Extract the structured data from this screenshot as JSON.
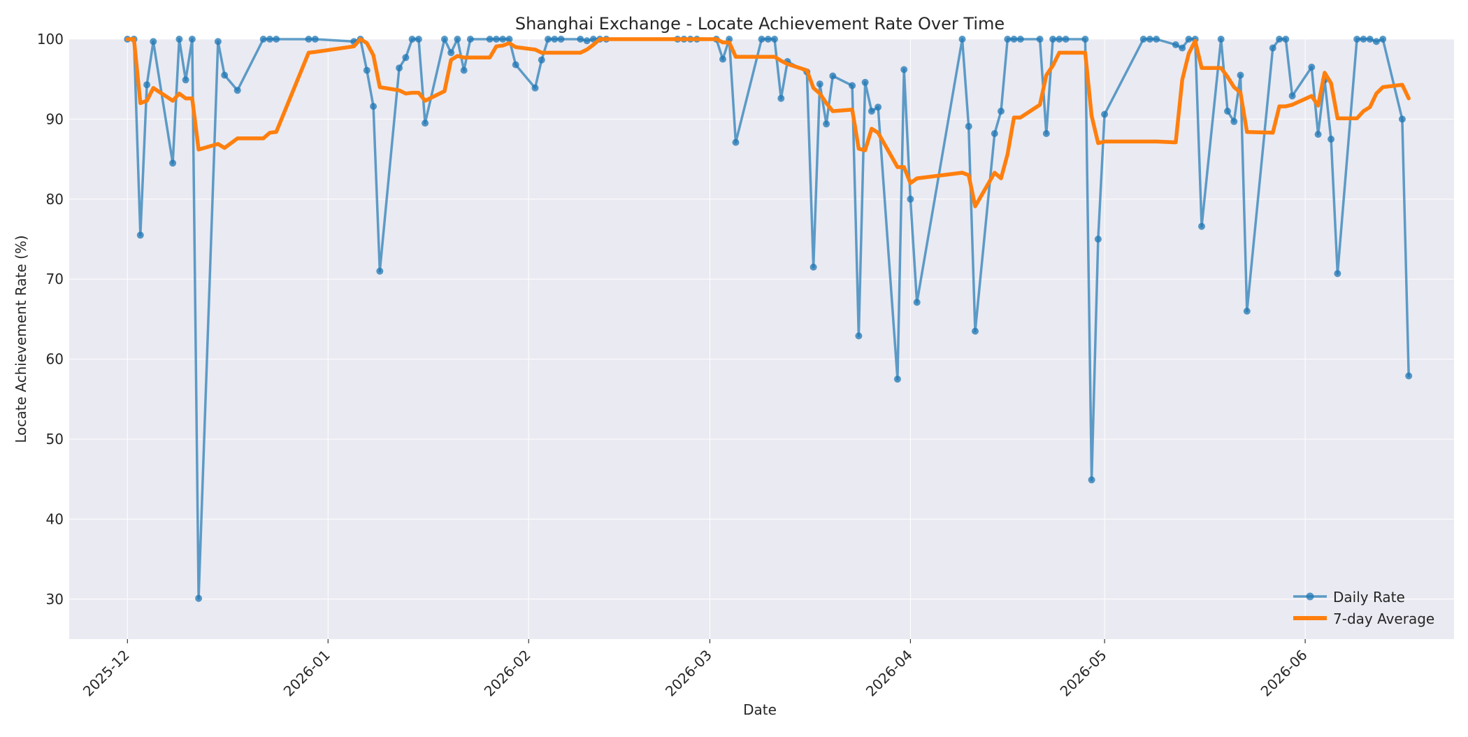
{
  "chart_data": {
    "type": "line",
    "title": "Shanghai Exchange - Locate Achievement Rate Over Time",
    "xlabel": "Date",
    "ylabel": "Locate Achievement Rate (%)",
    "xlim": [
      "2025-11-22",
      "2026-06-24"
    ],
    "ylim": [
      25,
      100
    ],
    "grid": true,
    "legend_position": "lower-right",
    "x_ticks": [
      "2025-12",
      "2026-01",
      "2026-02",
      "2026-03",
      "2026-04",
      "2026-05",
      "2026-06"
    ],
    "y_ticks": [
      30,
      40,
      50,
      60,
      70,
      80,
      90,
      100
    ],
    "series": [
      {
        "name": "Daily Rate",
        "color": "#1f77b4",
        "marker": "circle",
        "points": [
          [
            "2025-12-01",
            100.0
          ],
          [
            "2025-12-02",
            100.0
          ],
          [
            "2025-12-03",
            75.5
          ],
          [
            "2025-12-04",
            94.3
          ],
          [
            "2025-12-05",
            99.7
          ],
          [
            "2025-12-08",
            84.5
          ],
          [
            "2025-12-09",
            100.0
          ],
          [
            "2025-12-10",
            94.9
          ],
          [
            "2025-12-11",
            100.0
          ],
          [
            "2025-12-12",
            30.1
          ],
          [
            "2025-12-15",
            99.7
          ],
          [
            "2025-12-16",
            95.5
          ],
          [
            "2025-12-18",
            93.6
          ],
          [
            "2025-12-22",
            100.0
          ],
          [
            "2025-12-23",
            100.0
          ],
          [
            "2025-12-24",
            100.0
          ],
          [
            "2025-12-29",
            100.0
          ],
          [
            "2025-12-30",
            100.0
          ],
          [
            "2026-01-05",
            99.7
          ],
          [
            "2026-01-06",
            100.0
          ],
          [
            "2026-01-07",
            96.1
          ],
          [
            "2026-01-08",
            91.6
          ],
          [
            "2026-01-09",
            71.0
          ],
          [
            "2026-01-12",
            96.4
          ],
          [
            "2026-01-13",
            97.7
          ],
          [
            "2026-01-14",
            100.0
          ],
          [
            "2026-01-15",
            100.0
          ],
          [
            "2026-01-16",
            89.5
          ],
          [
            "2026-01-19",
            100.0
          ],
          [
            "2026-01-20",
            98.3
          ],
          [
            "2026-01-21",
            100.0
          ],
          [
            "2026-01-22",
            96.1
          ],
          [
            "2026-01-23",
            100.0
          ],
          [
            "2026-01-26",
            100.0
          ],
          [
            "2026-01-27",
            100.0
          ],
          [
            "2026-01-28",
            100.0
          ],
          [
            "2026-01-29",
            100.0
          ],
          [
            "2026-01-30",
            96.8
          ],
          [
            "2026-02-02",
            93.9
          ],
          [
            "2026-02-03",
            97.4
          ],
          [
            "2026-02-04",
            100.0
          ],
          [
            "2026-02-05",
            100.0
          ],
          [
            "2026-02-06",
            100.0
          ],
          [
            "2026-02-09",
            100.0
          ],
          [
            "2026-02-10",
            99.8
          ],
          [
            "2026-02-11",
            100.0
          ],
          [
            "2026-02-12",
            100.0
          ],
          [
            "2026-02-13",
            100.0
          ],
          [
            "2026-02-24",
            100.0
          ],
          [
            "2026-02-25",
            100.0
          ],
          [
            "2026-02-26",
            100.0
          ],
          [
            "2026-02-27",
            100.0
          ],
          [
            "2026-03-02",
            100.0
          ],
          [
            "2026-03-03",
            97.5
          ],
          [
            "2026-03-04",
            100.0
          ],
          [
            "2026-03-05",
            87.1
          ],
          [
            "2026-03-09",
            100.0
          ],
          [
            "2026-03-10",
            100.0
          ],
          [
            "2026-03-11",
            100.0
          ],
          [
            "2026-03-12",
            92.6
          ],
          [
            "2026-03-13",
            97.2
          ],
          [
            "2026-03-16",
            95.9
          ],
          [
            "2026-03-17",
            71.5
          ],
          [
            "2026-03-18",
            94.4
          ],
          [
            "2026-03-19",
            89.4
          ],
          [
            "2026-03-20",
            95.4
          ],
          [
            "2026-03-23",
            94.2
          ],
          [
            "2026-03-24",
            62.9
          ],
          [
            "2026-03-25",
            94.6
          ],
          [
            "2026-03-26",
            91.0
          ],
          [
            "2026-03-27",
            91.5
          ],
          [
            "2026-03-30",
            57.5
          ],
          [
            "2026-03-31",
            96.2
          ],
          [
            "2026-04-01",
            80.0
          ],
          [
            "2026-04-02",
            67.1
          ],
          [
            "2026-04-09",
            100.0
          ],
          [
            "2026-04-10",
            89.1
          ],
          [
            "2026-04-11",
            63.5
          ],
          [
            "2026-04-14",
            88.2
          ],
          [
            "2026-04-15",
            91.0
          ],
          [
            "2026-04-16",
            100.0
          ],
          [
            "2026-04-17",
            100.0
          ],
          [
            "2026-04-18",
            100.0
          ],
          [
            "2026-04-21",
            100.0
          ],
          [
            "2026-04-22",
            88.2
          ],
          [
            "2026-04-23",
            100.0
          ],
          [
            "2026-04-24",
            100.0
          ],
          [
            "2026-04-25",
            100.0
          ],
          [
            "2026-04-28",
            100.0
          ],
          [
            "2026-04-29",
            44.9
          ],
          [
            "2026-04-30",
            75.0
          ],
          [
            "2026-05-01",
            90.6
          ],
          [
            "2026-05-07",
            100.0
          ],
          [
            "2026-05-08",
            100.0
          ],
          [
            "2026-05-09",
            100.0
          ],
          [
            "2026-05-12",
            99.3
          ],
          [
            "2026-05-13",
            98.9
          ],
          [
            "2026-05-14",
            100.0
          ],
          [
            "2026-05-15",
            100.0
          ],
          [
            "2026-05-16",
            76.6
          ],
          [
            "2026-05-19",
            100.0
          ],
          [
            "2026-05-20",
            91.0
          ],
          [
            "2026-05-21",
            89.7
          ],
          [
            "2026-05-22",
            95.5
          ],
          [
            "2026-05-23",
            66.0
          ],
          [
            "2026-05-27",
            98.9
          ],
          [
            "2026-05-28",
            100.0
          ],
          [
            "2026-05-29",
            100.0
          ],
          [
            "2026-05-30",
            92.9
          ],
          [
            "2026-06-02",
            96.5
          ],
          [
            "2026-06-03",
            88.1
          ],
          [
            "2026-06-04",
            94.9
          ],
          [
            "2026-06-05",
            87.5
          ],
          [
            "2026-06-06",
            70.7
          ],
          [
            "2026-06-09",
            100.0
          ],
          [
            "2026-06-10",
            100.0
          ],
          [
            "2026-06-11",
            100.0
          ],
          [
            "2026-06-12",
            99.7
          ],
          [
            "2026-06-13",
            100.0
          ],
          [
            "2026-06-16",
            90.0
          ],
          [
            "2026-06-17",
            57.9
          ]
        ]
      },
      {
        "name": "7-day Average",
        "color": "#ff7f0e",
        "marker": "none",
        "points": [
          [
            "2025-12-01",
            100.0
          ],
          [
            "2025-12-02",
            100.0
          ],
          [
            "2025-12-03",
            92.0
          ],
          [
            "2025-12-04",
            92.3
          ],
          [
            "2025-12-05",
            93.9
          ],
          [
            "2025-12-08",
            92.3
          ],
          [
            "2025-12-09",
            93.2
          ],
          [
            "2025-12-10",
            92.6
          ],
          [
            "2025-12-11",
            92.6
          ],
          [
            "2025-12-12",
            86.2
          ],
          [
            "2025-12-15",
            86.9
          ],
          [
            "2025-12-16",
            86.4
          ],
          [
            "2025-12-18",
            87.6
          ],
          [
            "2025-12-22",
            87.6
          ],
          [
            "2025-12-23",
            88.3
          ],
          [
            "2025-12-24",
            88.4
          ],
          [
            "2025-12-29",
            98.3
          ],
          [
            "2025-12-30",
            98.4
          ],
          [
            "2026-01-05",
            99.1
          ],
          [
            "2026-01-06",
            100.0
          ],
          [
            "2026-01-07",
            99.5
          ],
          [
            "2026-01-08",
            98.0
          ],
          [
            "2026-01-09",
            94.0
          ],
          [
            "2026-01-12",
            93.6
          ],
          [
            "2026-01-13",
            93.2
          ],
          [
            "2026-01-14",
            93.3
          ],
          [
            "2026-01-15",
            93.3
          ],
          [
            "2026-01-16",
            92.3
          ],
          [
            "2026-01-19",
            93.5
          ],
          [
            "2026-01-20",
            97.4
          ],
          [
            "2026-01-21",
            97.9
          ],
          [
            "2026-01-22",
            97.7
          ],
          [
            "2026-01-23",
            97.7
          ],
          [
            "2026-01-26",
            97.7
          ],
          [
            "2026-01-27",
            99.1
          ],
          [
            "2026-01-28",
            99.2
          ],
          [
            "2026-01-29",
            99.5
          ],
          [
            "2026-01-30",
            99.0
          ],
          [
            "2026-02-02",
            98.7
          ],
          [
            "2026-02-03",
            98.3
          ],
          [
            "2026-02-04",
            98.3
          ],
          [
            "2026-02-05",
            98.3
          ],
          [
            "2026-02-06",
            98.3
          ],
          [
            "2026-02-09",
            98.3
          ],
          [
            "2026-02-10",
            98.7
          ],
          [
            "2026-02-11",
            99.3
          ],
          [
            "2026-02-12",
            100.0
          ],
          [
            "2026-02-13",
            100.0
          ],
          [
            "2026-02-24",
            100.0
          ],
          [
            "2026-02-25",
            100.0
          ],
          [
            "2026-02-26",
            100.0
          ],
          [
            "2026-02-27",
            100.0
          ],
          [
            "2026-03-02",
            100.0
          ],
          [
            "2026-03-03",
            99.6
          ],
          [
            "2026-03-04",
            99.6
          ],
          [
            "2026-03-05",
            97.8
          ],
          [
            "2026-03-09",
            97.8
          ],
          [
            "2026-03-10",
            97.8
          ],
          [
            "2026-03-11",
            97.8
          ],
          [
            "2026-03-12",
            97.3
          ],
          [
            "2026-03-13",
            96.9
          ],
          [
            "2026-03-16",
            96.1
          ],
          [
            "2026-03-17",
            93.9
          ],
          [
            "2026-03-18",
            93.2
          ],
          [
            "2026-03-19",
            92.0
          ],
          [
            "2026-03-20",
            91.0
          ],
          [
            "2026-03-23",
            91.2
          ],
          [
            "2026-03-24",
            86.3
          ],
          [
            "2026-03-25",
            86.1
          ],
          [
            "2026-03-26",
            88.8
          ],
          [
            "2026-03-27",
            88.3
          ],
          [
            "2026-03-30",
            84.0
          ],
          [
            "2026-03-31",
            84.0
          ],
          [
            "2026-04-01",
            82.0
          ],
          [
            "2026-04-02",
            82.6
          ],
          [
            "2026-04-09",
            83.3
          ],
          [
            "2026-04-10",
            83.0
          ],
          [
            "2026-04-11",
            79.1
          ],
          [
            "2026-04-14",
            83.3
          ],
          [
            "2026-04-15",
            82.6
          ],
          [
            "2026-04-16",
            85.6
          ],
          [
            "2026-04-17",
            90.2
          ],
          [
            "2026-04-18",
            90.2
          ],
          [
            "2026-04-21",
            91.8
          ],
          [
            "2026-04-22",
            95.5
          ],
          [
            "2026-04-23",
            96.7
          ],
          [
            "2026-04-24",
            98.3
          ],
          [
            "2026-04-25",
            98.3
          ],
          [
            "2026-04-28",
            98.3
          ],
          [
            "2026-04-29",
            90.4
          ],
          [
            "2026-04-30",
            87.0
          ],
          [
            "2026-05-01",
            87.2
          ],
          [
            "2026-05-07",
            87.2
          ],
          [
            "2026-05-08",
            87.2
          ],
          [
            "2026-05-09",
            87.2
          ],
          [
            "2026-05-12",
            87.1
          ],
          [
            "2026-05-13",
            94.9
          ],
          [
            "2026-05-14",
            98.2
          ],
          [
            "2026-05-15",
            99.8
          ],
          [
            "2026-05-16",
            96.4
          ],
          [
            "2026-05-19",
            96.4
          ],
          [
            "2026-05-20",
            95.3
          ],
          [
            "2026-05-21",
            94.0
          ],
          [
            "2026-05-22",
            93.3
          ],
          [
            "2026-05-23",
            88.4
          ],
          [
            "2026-05-27",
            88.3
          ],
          [
            "2026-05-28",
            91.6
          ],
          [
            "2026-05-29",
            91.6
          ],
          [
            "2026-05-30",
            91.8
          ],
          [
            "2026-06-02",
            92.9
          ],
          [
            "2026-06-03",
            91.7
          ],
          [
            "2026-06-04",
            95.8
          ],
          [
            "2026-06-05",
            94.5
          ],
          [
            "2026-06-06",
            90.1
          ],
          [
            "2026-06-09",
            90.1
          ],
          [
            "2026-06-10",
            91.0
          ],
          [
            "2026-06-11",
            91.5
          ],
          [
            "2026-06-12",
            93.2
          ],
          [
            "2026-06-13",
            94.0
          ],
          [
            "2026-06-16",
            94.3
          ],
          [
            "2026-06-17",
            92.6
          ]
        ]
      }
    ]
  }
}
